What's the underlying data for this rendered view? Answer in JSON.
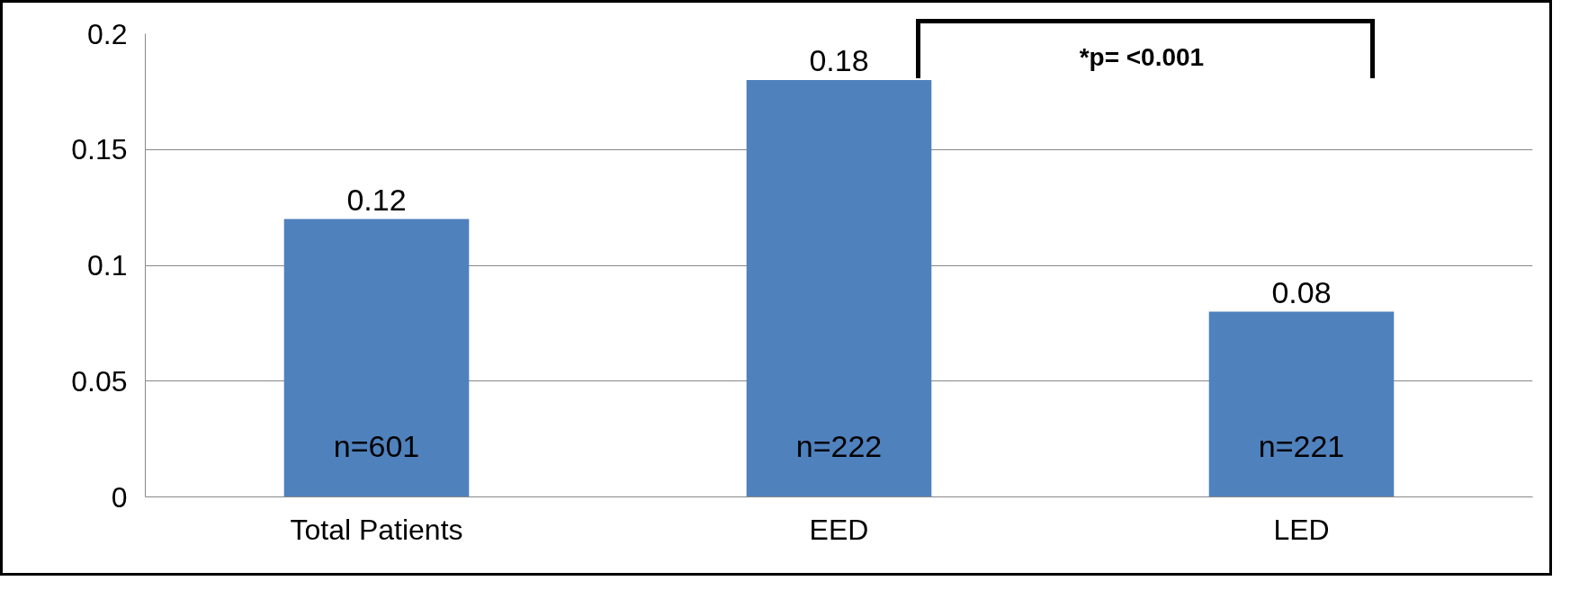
{
  "chart_data": {
    "type": "bar",
    "categories": [
      "Total Patients",
      "EED",
      "LED"
    ],
    "values": [
      0.12,
      0.18,
      0.08
    ],
    "color": "#4f81bd",
    "ylim": [
      0,
      0.2
    ],
    "yticks": [
      0,
      0.05,
      0.1,
      0.15,
      0.2
    ],
    "grid": "y",
    "data_labels": true,
    "annotations": [
      "n=601",
      "n=222",
      "n=221",
      "*p= <0.001"
    ]
  }
}
